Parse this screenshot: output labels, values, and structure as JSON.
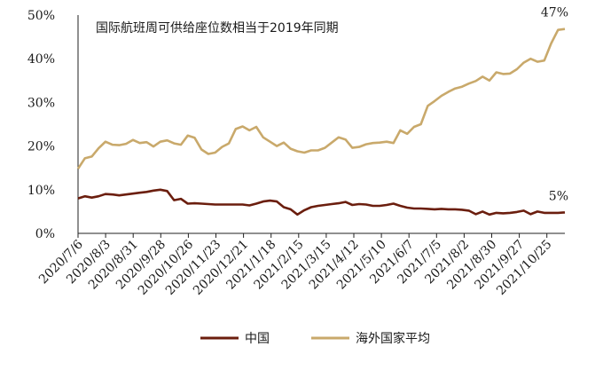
{
  "chart_data": {
    "type": "line",
    "title": "国际航班周可供给座位数相当于2019年同期",
    "xlabel": "",
    "ylabel": "",
    "ylim": [
      0,
      50
    ],
    "yticks": [
      "0%",
      "10%",
      "20%",
      "30%",
      "40%",
      "50%"
    ],
    "xtick_labels": [
      "2020/7/6",
      "2020/8/3",
      "2020/8/31",
      "2020/9/28",
      "2020/10/26",
      "2020/11/23",
      "2020/12/21",
      "2021/1/18",
      "2021/2/15",
      "2021/3/15",
      "2021/4/12",
      "2021/5/10",
      "2021/6/7",
      "2021/7/5",
      "2021/8/2",
      "2021/8/30",
      "2021/9/27",
      "2021/10/25"
    ],
    "grid": false,
    "legend_position": "bottom",
    "colors": {
      "china": "#6b1e0e",
      "overseas": "#c9a96b"
    },
    "series": [
      {
        "name": "中国",
        "values": [
          8.0,
          8.5,
          8.2,
          8.5,
          9.0,
          8.9,
          8.7,
          8.9,
          9.1,
          9.3,
          9.5,
          9.8,
          10.0,
          9.7,
          7.6,
          7.9,
          6.8,
          6.9,
          6.8,
          6.7,
          6.6,
          6.6,
          6.6,
          6.6,
          6.6,
          6.4,
          6.8,
          7.3,
          7.5,
          7.3,
          6.0,
          5.5,
          4.3,
          5.3,
          6.0,
          6.3,
          6.5,
          6.7,
          6.9,
          7.2,
          6.5,
          6.7,
          6.6,
          6.3,
          6.3,
          6.5,
          6.8,
          6.3,
          5.9,
          5.7,
          5.7,
          5.6,
          5.5,
          5.6,
          5.5,
          5.5,
          5.4,
          5.2,
          4.4,
          5.0,
          4.3,
          4.7,
          4.6,
          4.7,
          4.9,
          5.2,
          4.4,
          5.0,
          4.7,
          4.7,
          4.7,
          4.8
        ],
        "annotation": "5%"
      },
      {
        "name": "海外国家平均",
        "values": [
          14.8,
          17.2,
          17.6,
          19.5,
          21.0,
          20.3,
          20.2,
          20.5,
          21.4,
          20.7,
          20.9,
          19.9,
          21.0,
          21.3,
          20.6,
          20.3,
          22.4,
          21.9,
          19.2,
          18.2,
          18.5,
          19.8,
          20.6,
          23.9,
          24.5,
          23.6,
          24.4,
          22.0,
          21.0,
          20.0,
          20.8,
          19.4,
          18.8,
          18.5,
          19.0,
          19.0,
          19.6,
          20.8,
          22.0,
          21.5,
          19.6,
          19.8,
          20.4,
          20.7,
          20.8,
          21.0,
          20.7,
          23.6,
          22.8,
          24.4,
          25.0,
          29.2,
          30.3,
          31.5,
          32.4,
          33.2,
          33.6,
          34.3,
          34.9,
          35.9,
          35.0,
          36.9,
          36.5,
          36.6,
          37.6,
          39.1,
          40.0,
          39.3,
          39.6,
          43.5,
          46.6,
          46.8
        ],
        "annotation": "47%"
      }
    ]
  }
}
